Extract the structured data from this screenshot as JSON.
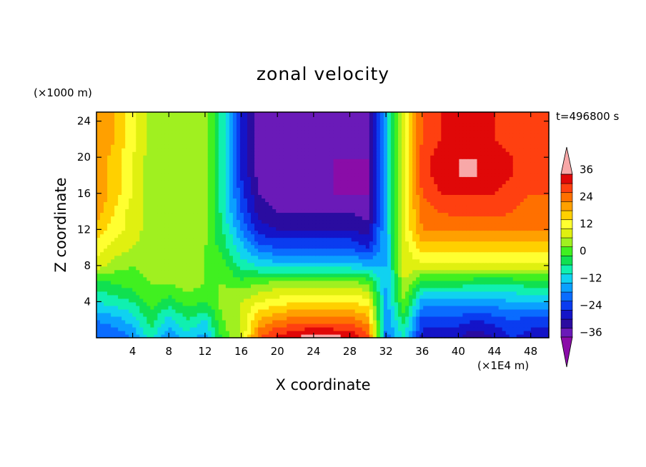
{
  "chart_data": {
    "type": "heatmap",
    "title": "zonal velocity",
    "xlabel": "X coordinate",
    "ylabel": "Z coordinate",
    "x_unit": "(×1E4 m)",
    "y_unit": "(×1000 m)",
    "time_label": "t=496800 s",
    "xlim": [
      0,
      50
    ],
    "ylim": [
      0,
      25
    ],
    "x_ticks": [
      4,
      8,
      12,
      16,
      20,
      24,
      28,
      32,
      36,
      40,
      44,
      48
    ],
    "y_ticks": [
      4,
      8,
      12,
      16,
      20,
      24
    ],
    "colorbar": {
      "min": -42,
      "max": 42,
      "step": 4,
      "labels": [
        36,
        24,
        12,
        0,
        -12,
        -24,
        -36
      ],
      "colors": [
        "#8a0ca8",
        "#6a1ab8",
        "#2a0ca0",
        "#1414c8",
        "#0a3cf0",
        "#0a6cff",
        "#0aa0ff",
        "#10d2f0",
        "#10f0b0",
        "#10e050",
        "#40f020",
        "#a0f020",
        "#e0f010",
        "#ffff30",
        "#ffd000",
        "#ffa000",
        "#ff7000",
        "#ff4010",
        "#e00808",
        "#f8a8a8"
      ]
    },
    "x": [
      0,
      2,
      4,
      6,
      8,
      10,
      12,
      14,
      16,
      18,
      20,
      22,
      24,
      26,
      28,
      30,
      32,
      34,
      36,
      38,
      40,
      42,
      44,
      46,
      48,
      50
    ],
    "z": [
      0,
      2,
      4,
      6,
      8,
      10,
      12,
      14,
      16,
      18,
      20,
      22,
      24,
      25
    ],
    "values": [
      [
        -22,
        -22,
        -18,
        -8,
        -18,
        -12,
        -16,
        0,
        6,
        26,
        32,
        34,
        38,
        36,
        34,
        28,
        -20,
        -10,
        -28,
        -28,
        -30,
        -34,
        -30,
        -26,
        -28,
        -30
      ],
      [
        -18,
        -16,
        -12,
        -4,
        -12,
        -6,
        -10,
        2,
        6,
        18,
        22,
        24,
        24,
        24,
        24,
        20,
        -18,
        -4,
        -24,
        -24,
        -24,
        -26,
        -24,
        -22,
        -24,
        -24
      ],
      [
        -10,
        -8,
        -6,
        0,
        -4,
        0,
        -2,
        4,
        6,
        10,
        12,
        14,
        14,
        14,
        14,
        12,
        -16,
        2,
        -16,
        -16,
        -16,
        -16,
        -16,
        -14,
        -14,
        -14
      ],
      [
        -4,
        -2,
        0,
        2,
        2,
        4,
        2,
        2,
        0,
        2,
        4,
        4,
        4,
        4,
        4,
        2,
        -14,
        6,
        -4,
        -4,
        -4,
        -6,
        -6,
        -6,
        -4,
        -4
      ],
      [
        8,
        4,
        2,
        4,
        4,
        4,
        2,
        0,
        -8,
        -10,
        -12,
        -12,
        -12,
        -12,
        -12,
        -14,
        -14,
        8,
        8,
        8,
        8,
        8,
        8,
        8,
        8,
        8
      ],
      [
        12,
        8,
        6,
        4,
        4,
        2,
        2,
        -4,
        -12,
        -20,
        -22,
        -22,
        -22,
        -22,
        -22,
        -26,
        -14,
        8,
        16,
        16,
        16,
        16,
        16,
        16,
        16,
        16
      ],
      [
        16,
        12,
        8,
        4,
        2,
        2,
        4,
        -6,
        -18,
        -28,
        -30,
        -30,
        -30,
        -30,
        -30,
        -32,
        -14,
        10,
        22,
        22,
        22,
        22,
        22,
        22,
        22,
        22
      ],
      [
        20,
        14,
        8,
        4,
        2,
        4,
        4,
        -8,
        -22,
        -32,
        -34,
        -34,
        -34,
        -34,
        -34,
        -36,
        -14,
        10,
        24,
        26,
        28,
        28,
        28,
        26,
        24,
        24
      ],
      [
        22,
        16,
        10,
        4,
        2,
        6,
        4,
        -8,
        -24,
        -34,
        -36,
        -36,
        -38,
        -38,
        -38,
        -38,
        -14,
        10,
        26,
        30,
        30,
        30,
        30,
        28,
        26,
        26
      ],
      [
        22,
        16,
        10,
        4,
        2,
        6,
        4,
        -8,
        -26,
        -36,
        -38,
        -38,
        -38,
        -38,
        -40,
        -38,
        -14,
        10,
        28,
        32,
        34,
        34,
        32,
        30,
        28,
        28
      ],
      [
        22,
        16,
        10,
        4,
        2,
        6,
        4,
        -8,
        -26,
        -36,
        -38,
        -38,
        -38,
        -38,
        -38,
        -38,
        -14,
        10,
        28,
        32,
        34,
        34,
        32,
        30,
        28,
        28
      ],
      [
        22,
        18,
        12,
        4,
        2,
        6,
        4,
        -8,
        -26,
        -36,
        -38,
        -38,
        -38,
        -38,
        -38,
        -38,
        -14,
        10,
        26,
        30,
        32,
        32,
        30,
        28,
        26,
        26
      ],
      [
        22,
        18,
        12,
        4,
        2,
        6,
        4,
        -8,
        -26,
        -36,
        -38,
        -38,
        -38,
        -38,
        -38,
        -38,
        -14,
        10,
        26,
        30,
        32,
        32,
        30,
        28,
        26,
        26
      ],
      [
        22,
        18,
        12,
        4,
        2,
        6,
        4,
        -8,
        -26,
        -36,
        -38,
        -38,
        -38,
        -38,
        -38,
        -38,
        -14,
        10,
        26,
        30,
        32,
        32,
        30,
        28,
        26,
        26
      ]
    ]
  }
}
